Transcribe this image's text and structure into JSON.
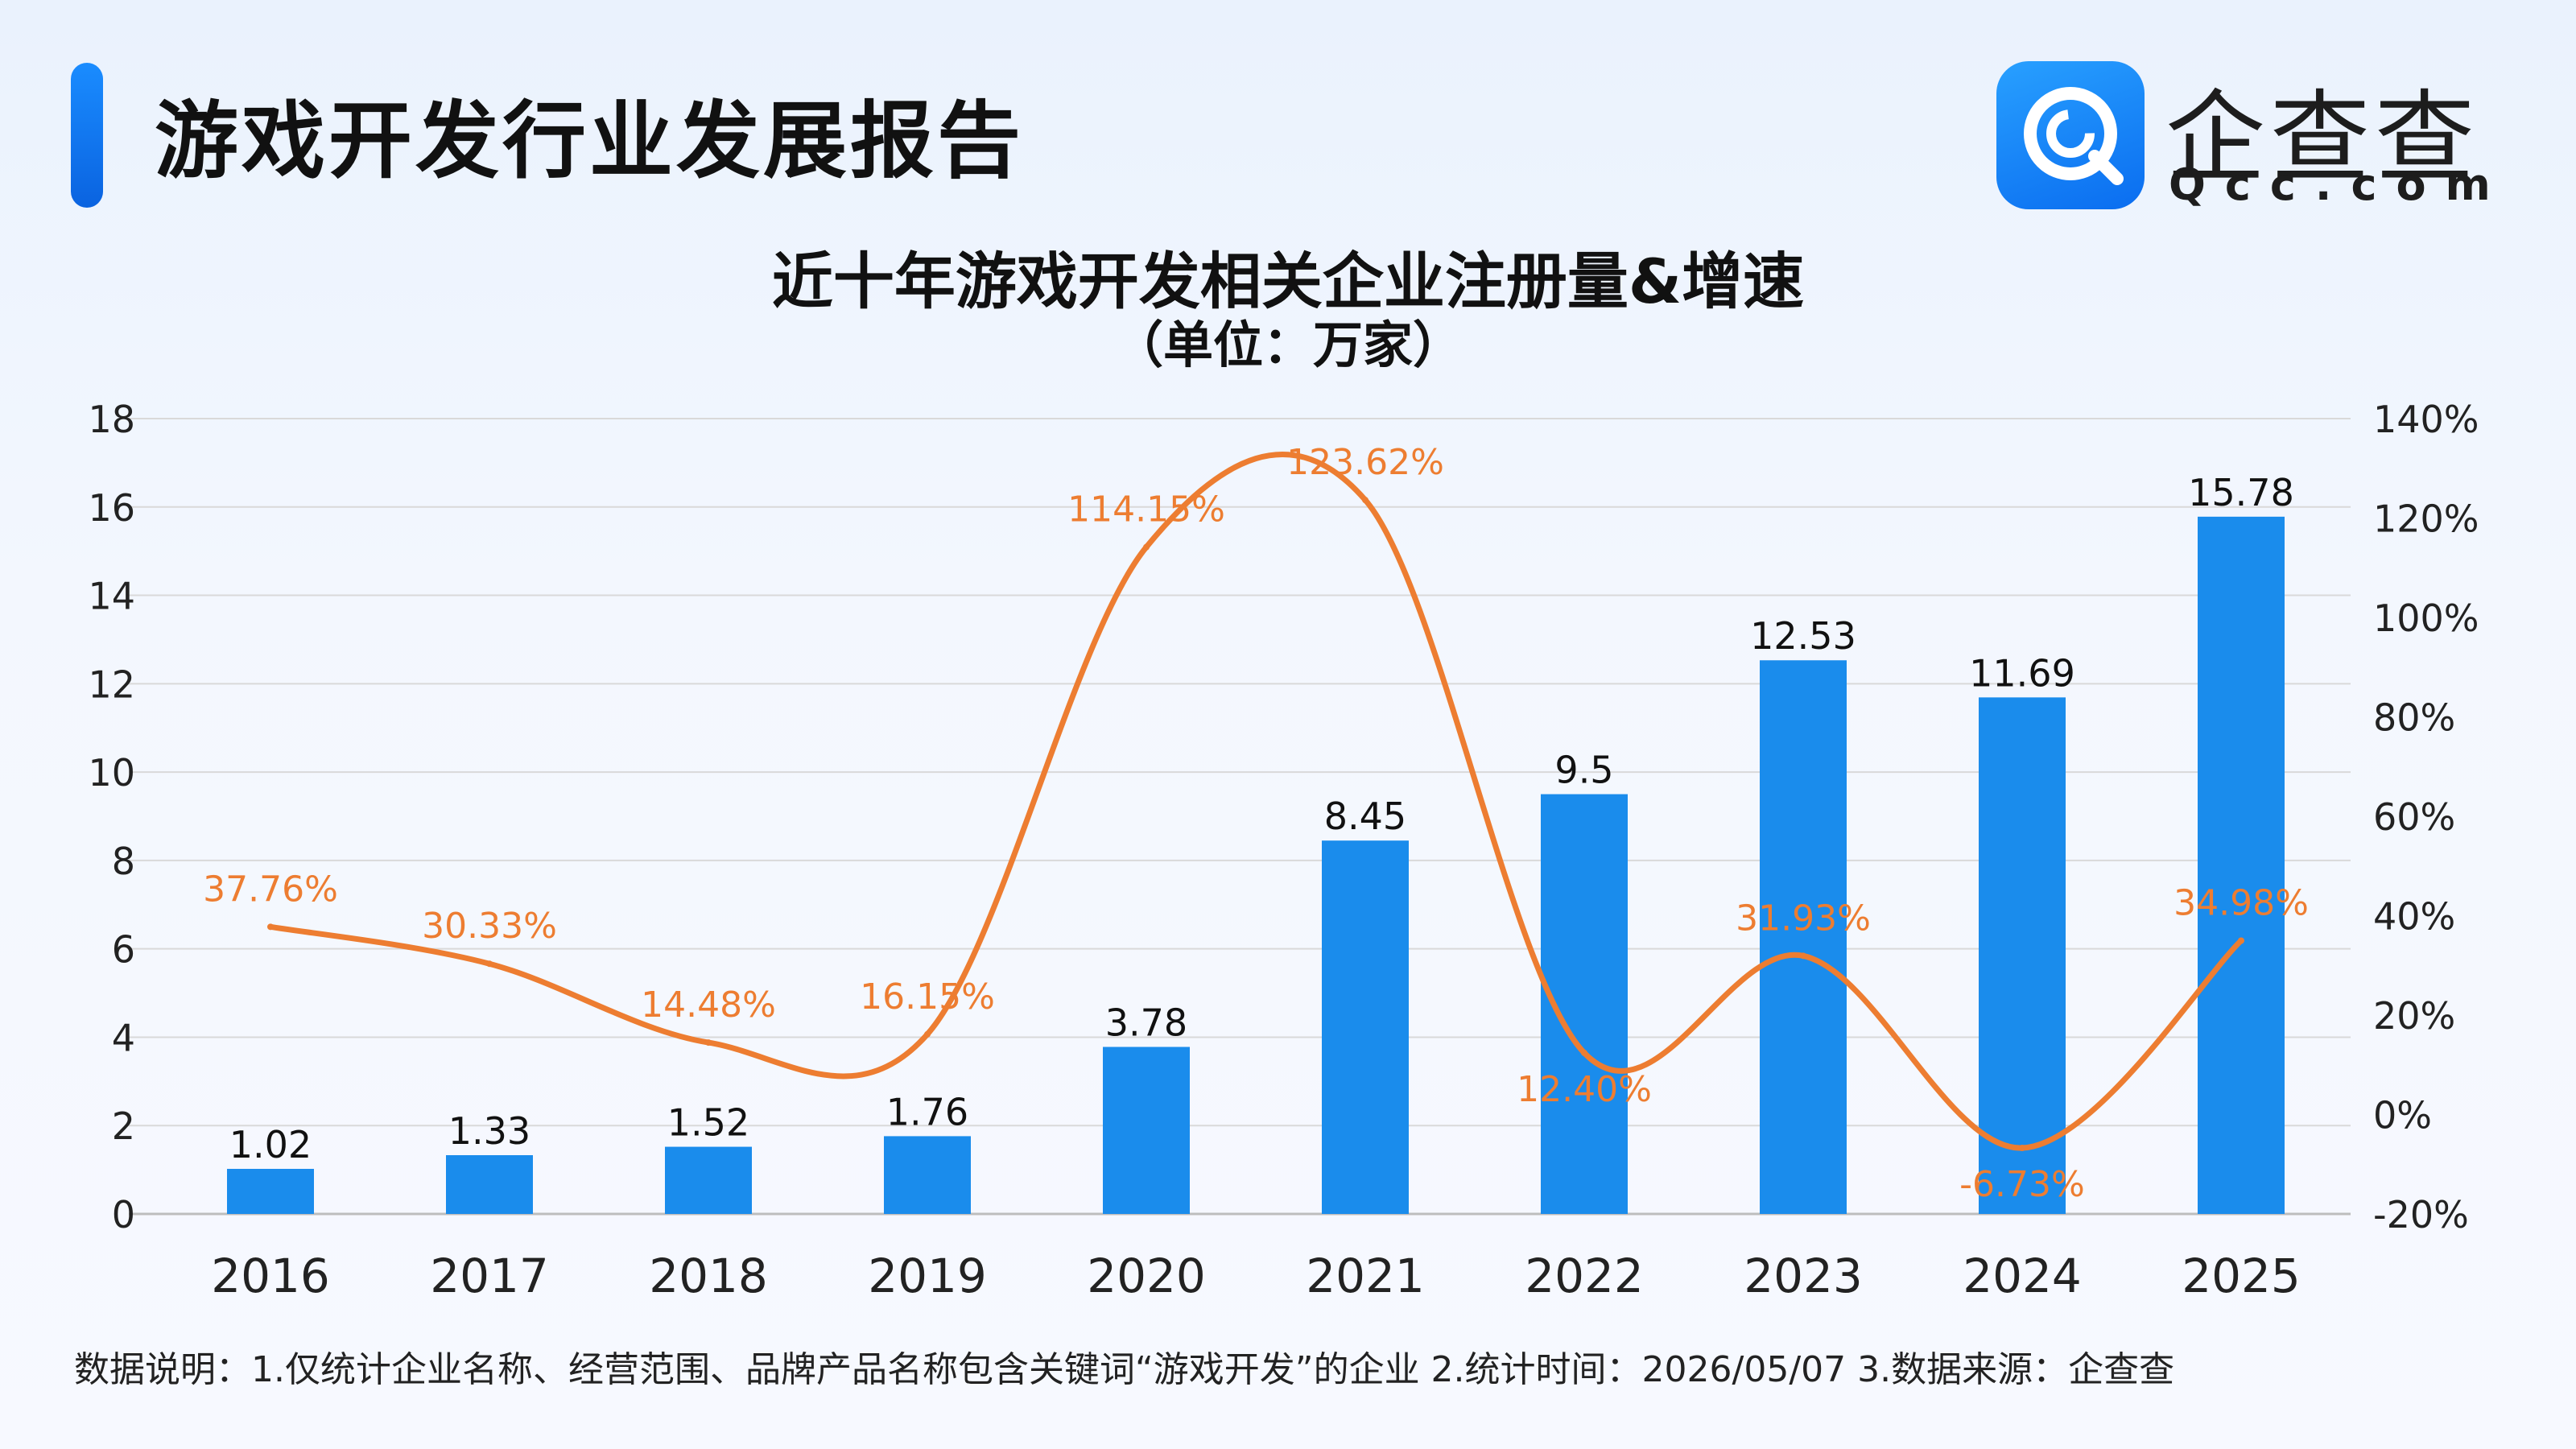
{
  "header": {
    "title": "游戏开发行业发展报告"
  },
  "logo": {
    "name": "企查查",
    "domain": "Qcc.com",
    "color": "#1a8cff"
  },
  "chart_data": {
    "type": "bar",
    "title": "近十年游戏开发相关企业注册量&增速",
    "subtitle": "（单位：万家）",
    "categories": [
      "2016",
      "2017",
      "2018",
      "2019",
      "2020",
      "2021",
      "2022",
      "2023",
      "2024",
      "2025"
    ],
    "series": [
      {
        "type": "bar",
        "axis": "left",
        "color": "#1a8cec",
        "values": [
          1.02,
          1.33,
          1.52,
          1.76,
          3.78,
          8.45,
          9.5,
          12.53,
          11.69,
          15.78
        ],
        "labels": [
          "1.02",
          "1.33",
          "1.52",
          "1.76",
          "3.78",
          "8.45",
          "9.5",
          "12.53",
          "11.69",
          "15.78"
        ]
      },
      {
        "type": "line",
        "axis": "right",
        "color": "#ed7d31",
        "smooth": true,
        "values": [
          37.76,
          30.33,
          14.48,
          16.15,
          114.15,
          123.62,
          12.4,
          31.93,
          -6.73,
          34.98
        ],
        "labels": [
          "37.76%",
          "30.33%",
          "14.48%",
          "16.15%",
          "114.15%",
          "123.62%",
          "12.40%",
          "31.93%",
          "-6.73%",
          "34.98%"
        ]
      }
    ],
    "y_left": {
      "min": 0,
      "max": 18,
      "step": 2,
      "ticks": [
        "0",
        "2",
        "4",
        "6",
        "8",
        "10",
        "12",
        "14",
        "16",
        "18"
      ]
    },
    "y_right": {
      "min": -20,
      "max": 140,
      "step": 20,
      "ticks": [
        "-20%",
        "0%",
        "20%",
        "40%",
        "60%",
        "80%",
        "100%",
        "120%",
        "140%"
      ]
    },
    "grid": true,
    "legend": "none"
  },
  "footnote": "数据说明：1.仅统计企业名称、经营范围、品牌产品名称包含关键词“游戏开发”的企业   2.统计时间：2026/05/07     3.数据来源：企查查"
}
